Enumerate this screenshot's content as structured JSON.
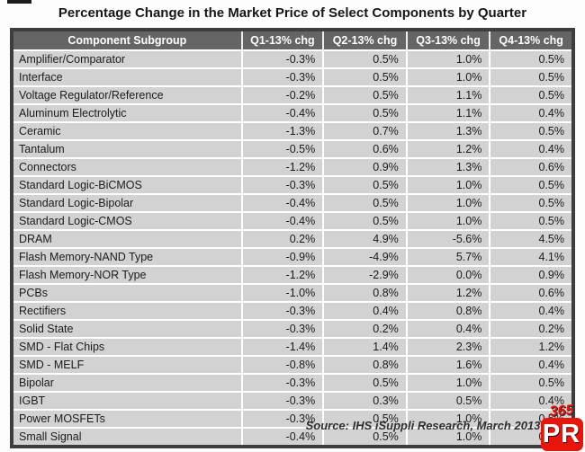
{
  "title": "Percentage Change in the Market Price of Select Components by Quarter",
  "footer": {
    "source_note": "Source: IHS iSuppli Research, March 2013"
  },
  "logo": {
    "line1": "365",
    "line2": "PR",
    "color": "#e8150d"
  },
  "colors": {
    "header_bg": "#656565",
    "header_text": "#ffffff",
    "row_bg": "#d2d2d2",
    "row_separator": "#ffffff",
    "table_border": "#3d3d3d",
    "logo_red": "#e8150d"
  },
  "chart_data": {
    "type": "table",
    "title": "Percentage Change in the Market Price of Select Components by Quarter",
    "columns": [
      "Component Subgroup",
      "Q1-13% chg",
      "Q2-13% chg",
      "Q3-13% chg",
      "Q4-13% chg"
    ],
    "rows": [
      [
        "Amplifier/Comparator",
        "-0.3%",
        "0.5%",
        "1.0%",
        "0.5%"
      ],
      [
        "Interface",
        "-0.3%",
        "0.5%",
        "1.0%",
        "0.5%"
      ],
      [
        "Voltage Regulator/Reference",
        "-0.2%",
        "0.5%",
        "1.1%",
        "0.5%"
      ],
      [
        "Aluminum Electrolytic",
        "-0.4%",
        "0.5%",
        "1.1%",
        "0.4%"
      ],
      [
        "Ceramic",
        "-1.3%",
        "0.7%",
        "1.3%",
        "0.5%"
      ],
      [
        "Tantalum",
        "-0.5%",
        "0.6%",
        "1.2%",
        "0.4%"
      ],
      [
        "Connectors",
        "-1.2%",
        "0.9%",
        "1.3%",
        "0.6%"
      ],
      [
        "Standard Logic-BiCMOS",
        "-0.3%",
        "0.5%",
        "1.0%",
        "0.5%"
      ],
      [
        "Standard Logic-Bipolar",
        "-0.4%",
        "0.5%",
        "1.0%",
        "0.5%"
      ],
      [
        "Standard Logic-CMOS",
        "-0.4%",
        "0.5%",
        "1.0%",
        "0.5%"
      ],
      [
        "DRAM",
        "0.2%",
        "4.9%",
        "-5.6%",
        "4.5%"
      ],
      [
        "Flash Memory-NAND Type",
        "-0.9%",
        "-4.9%",
        "5.7%",
        "4.1%"
      ],
      [
        "Flash Memory-NOR Type",
        "-1.2%",
        "-2.9%",
        "0.0%",
        "0.9%"
      ],
      [
        "PCBs",
        "-1.0%",
        "0.8%",
        "1.2%",
        "0.6%"
      ],
      [
        "Rectifiers",
        "-0.3%",
        "0.4%",
        "0.8%",
        "0.4%"
      ],
      [
        "Solid State",
        "-0.3%",
        "0.2%",
        "0.4%",
        "0.2%"
      ],
      [
        "SMD - Flat Chips",
        "-1.4%",
        "1.4%",
        "2.3%",
        "1.2%"
      ],
      [
        "SMD - MELF",
        "-0.8%",
        "0.8%",
        "1.6%",
        "0.4%"
      ],
      [
        "Bipolar",
        "-0.3%",
        "0.5%",
        "1.0%",
        "0.5%"
      ],
      [
        "IGBT",
        "-0.3%",
        "0.3%",
        "0.5%",
        "0.4%"
      ],
      [
        "Power MOSFETs",
        "-0.3%",
        "0.5%",
        "1.0%",
        "0.5%"
      ],
      [
        "Small Signal",
        "-0.4%",
        "0.5%",
        "1.0%",
        "0.5%"
      ]
    ]
  }
}
